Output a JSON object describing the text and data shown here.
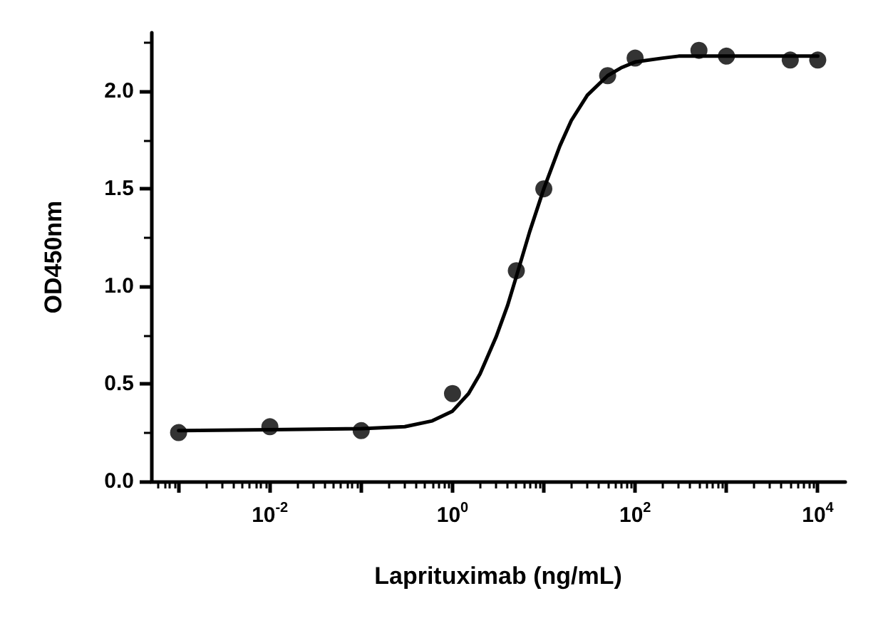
{
  "chart_data": {
    "type": "scatter",
    "xlabel": "Laprituximab (ng/mL)",
    "ylabel": "OD450nm",
    "log": "x",
    "xlim": [
      0.0005,
      20000
    ],
    "ylim": [
      0,
      2.3
    ],
    "xticks": [
      {
        "value": 0.001,
        "label": null
      },
      {
        "value": 0.01,
        "label": "10$^{-2}$"
      },
      {
        "value": 0.1,
        "label": null
      },
      {
        "value": 1,
        "label": "10$^{0}$"
      },
      {
        "value": 10,
        "label": null
      },
      {
        "value": 100,
        "label": "10$^{2}$"
      },
      {
        "value": 1000,
        "label": null
      },
      {
        "value": 10000,
        "label": "10$^{4}$"
      }
    ],
    "yticks": [
      {
        "value": 0,
        "label": "0.0"
      },
      {
        "value": 0.5,
        "label": "0.5"
      },
      {
        "value": 1,
        "label": "1.0"
      },
      {
        "value": 1.5,
        "label": "1.5"
      },
      {
        "value": 2,
        "label": "2.0"
      }
    ],
    "grid": false,
    "marker": "circle",
    "series": [
      {
        "color": "#000000",
        "x": [
          0.001,
          0.01,
          0.1,
          1,
          5,
          10,
          50,
          100,
          500,
          1000,
          5000,
          10000
        ],
        "values": [
          0.25,
          0.28,
          0.26,
          0.45,
          1.08,
          1.5,
          2.08,
          2.17,
          2.21,
          2.18,
          2.16,
          2.16
        ]
      },
      {
        "type": "line",
        "color": "#000000",
        "marker": "none",
        "line_style": "solid",
        "x": [
          0.001,
          0.01,
          0.1,
          0.3,
          0.6,
          1,
          1.5,
          2,
          3,
          4,
          5,
          7,
          10,
          15,
          20,
          30,
          50,
          70,
          100,
          200,
          300,
          1000,
          10000
        ],
        "values": [
          0.26,
          0.265,
          0.27,
          0.28,
          0.31,
          0.36,
          0.45,
          0.55,
          0.74,
          0.9,
          1.05,
          1.28,
          1.5,
          1.72,
          1.85,
          1.98,
          2.08,
          2.12,
          2.15,
          2.17,
          2.18,
          2.18,
          2.18
        ]
      }
    ]
  }
}
